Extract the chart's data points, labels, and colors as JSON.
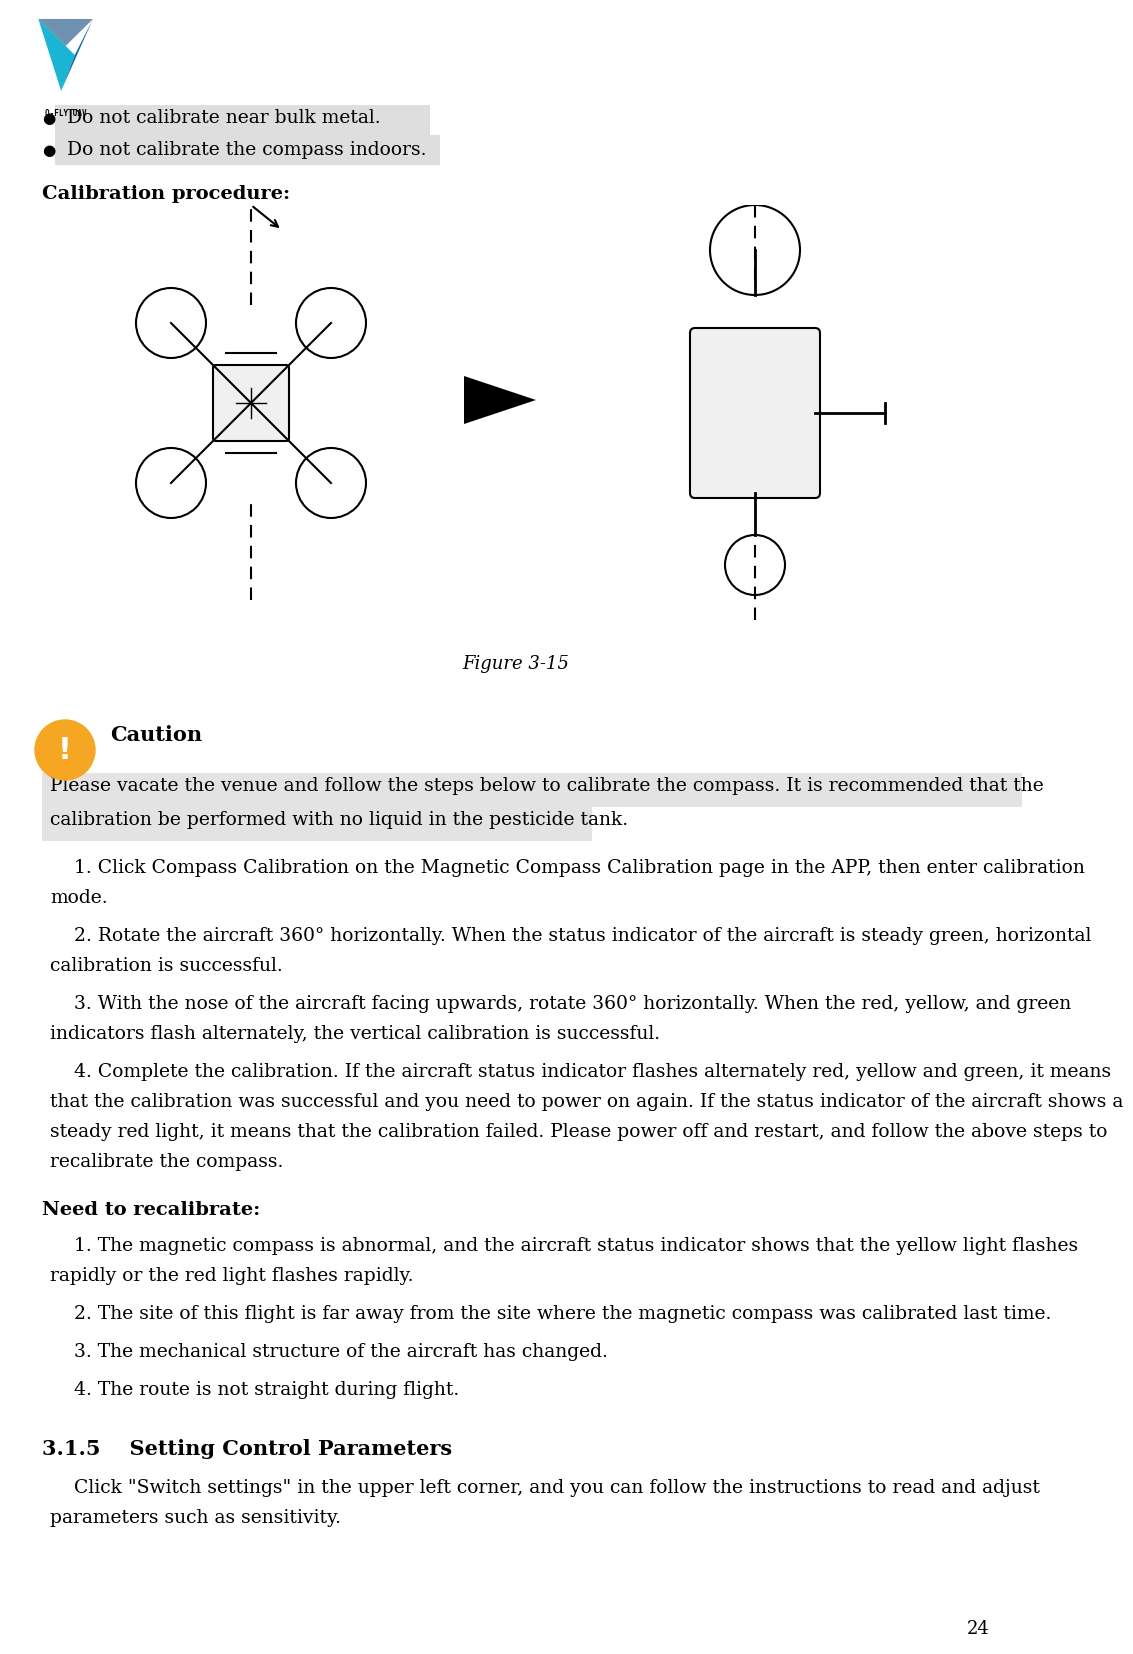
{
  "page_number": "24",
  "background_color": "#ffffff",
  "bullet_items": [
    "Do not calibrate near bulk metal.",
    "Do not calibrate the compass indoors."
  ],
  "bullet_highlight_color": "#c8c8c8",
  "section_calibration_title": "Calibration procedure:",
  "figure_caption": "Figure 3-15",
  "caution_title": "Caution",
  "caution_icon_color": "#f5a623",
  "caution_highlight_text_line1": "Please vacate the venue and follow the steps below to calibrate the compass. It is recommended that the",
  "caution_highlight_text_line2": "calibration be performed with no liquid in the pesticide tank.",
  "caution_highlight_bg": "#c8c8c8",
  "body_text": [
    "    1. Click Compass Calibration on the Magnetic Compass Calibration page in the APP, then enter calibration\nmode.",
    "    2. Rotate the aircraft 360° horizontally. When the status indicator of the aircraft is steady green, horizontal\ncalibration is successful.",
    "    3. With the nose of the aircraft facing upwards, rotate 360° horizontally. When the red, yellow, and green\nindicators flash alternately, the vertical calibration is successful.",
    "    4. Complete the calibration. If the aircraft status indicator flashes alternately red, yellow and green, it means\nthat the calibration was successful and you need to power on again. If the status indicator of the aircraft shows a\nsteady red light, it means that the calibration failed. Please power off and restart, and follow the above steps to\nrecalibrate the compass."
  ],
  "recalibrate_title": "Need to recalibrate:",
  "recalibrate_items": [
    "    1. The magnetic compass is abnormal, and the aircraft status indicator shows that the yellow light flashes\nrapidly or the red light flashes rapidly.",
    "    2. The site of this flight is far away from the site where the magnetic compass was calibrated last time.",
    "    3. The mechanical structure of the aircraft has changed.",
    "    4. The route is not straight during flight."
  ],
  "section_title": "3.1.5    Setting Control Parameters",
  "section_body": "    Click \"Switch settings\" in the upper left corner, and you can follow the instructions to read and adjust\nparameters such as sensitivity.",
  "logo_color1": "#1ab5d4",
  "logo_color2": "#1a6ca0",
  "logo_color3": "#0d4a7a",
  "logo_text": "Q-FLY UAV"
}
